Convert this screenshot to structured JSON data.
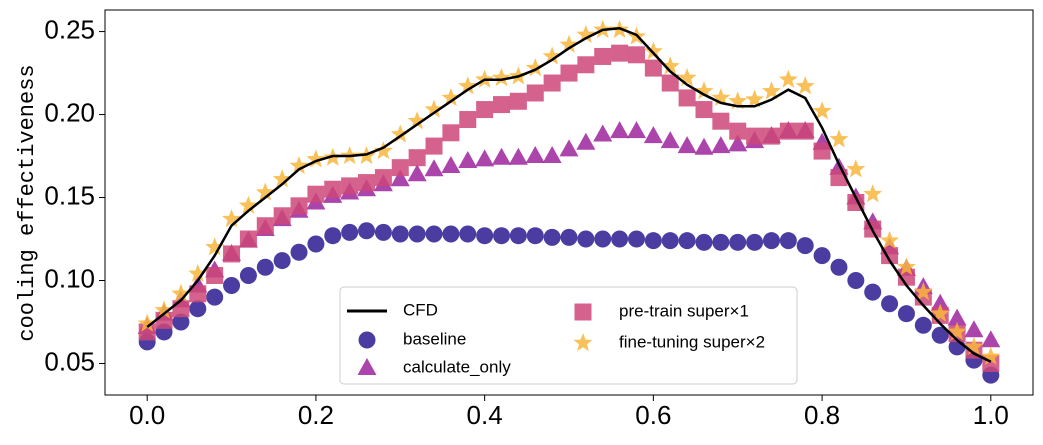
{
  "chart_data": {
    "type": "scatter",
    "ylabel": "cooling effectiveness",
    "x": [
      0,
      0.02,
      0.04,
      0.06,
      0.08,
      0.1,
      0.12,
      0.14,
      0.16,
      0.18,
      0.2,
      0.22,
      0.24,
      0.26,
      0.28,
      0.3,
      0.32,
      0.34,
      0.36,
      0.38,
      0.4,
      0.42,
      0.44,
      0.46,
      0.48,
      0.5,
      0.52,
      0.54,
      0.56,
      0.58,
      0.6,
      0.62,
      0.64,
      0.66,
      0.68,
      0.7,
      0.72,
      0.74,
      0.76,
      0.78,
      0.8,
      0.82,
      0.84,
      0.86,
      0.88,
      0.9,
      0.92,
      0.94,
      0.96,
      0.98,
      1.0
    ],
    "series": [
      {
        "name": "CFD",
        "color": "#000000",
        "marker": "line",
        "values": [
          0.072,
          0.08,
          0.088,
          0.1,
          0.115,
          0.133,
          0.142,
          0.15,
          0.158,
          0.167,
          0.172,
          0.175,
          0.175,
          0.176,
          0.18,
          0.187,
          0.194,
          0.201,
          0.208,
          0.215,
          0.221,
          0.221,
          0.223,
          0.227,
          0.233,
          0.24,
          0.246,
          0.251,
          0.252,
          0.248,
          0.237,
          0.226,
          0.218,
          0.212,
          0.207,
          0.205,
          0.205,
          0.209,
          0.215,
          0.21,
          0.192,
          0.17,
          0.15,
          0.13,
          0.112,
          0.097,
          0.085,
          0.074,
          0.064,
          0.056,
          0.051
        ]
      },
      {
        "name": "baseline",
        "color": "#2a1a8f",
        "marker": "circle",
        "values": [
          0.063,
          0.069,
          0.075,
          0.083,
          0.09,
          0.097,
          0.103,
          0.108,
          0.112,
          0.117,
          0.122,
          0.127,
          0.129,
          0.13,
          0.129,
          0.128,
          0.128,
          0.128,
          0.128,
          0.128,
          0.127,
          0.127,
          0.127,
          0.127,
          0.126,
          0.126,
          0.125,
          0.125,
          0.125,
          0.125,
          0.124,
          0.124,
          0.124,
          0.123,
          0.123,
          0.123,
          0.123,
          0.124,
          0.124,
          0.121,
          0.115,
          0.108,
          0.1,
          0.093,
          0.086,
          0.08,
          0.073,
          0.067,
          0.06,
          0.052,
          0.043
        ]
      },
      {
        "name": "calculate_only",
        "color": "#9c259e",
        "marker": "triangle",
        "values": [
          0.072,
          0.08,
          0.088,
          0.097,
          0.106,
          0.116,
          0.124,
          0.131,
          0.137,
          0.142,
          0.147,
          0.151,
          0.153,
          0.155,
          0.158,
          0.161,
          0.164,
          0.167,
          0.169,
          0.172,
          0.173,
          0.174,
          0.174,
          0.175,
          0.175,
          0.179,
          0.183,
          0.188,
          0.19,
          0.19,
          0.187,
          0.184,
          0.181,
          0.18,
          0.181,
          0.182,
          0.184,
          0.187,
          0.19,
          0.19,
          0.183,
          0.168,
          0.15,
          0.135,
          0.12,
          0.107,
          0.096,
          0.086,
          0.077,
          0.07,
          0.064
        ]
      },
      {
        "name": "pre-train super×1",
        "color": "#cc4778",
        "marker": "square",
        "values": [
          0.069,
          0.076,
          0.083,
          0.092,
          0.103,
          0.116,
          0.125,
          0.133,
          0.139,
          0.145,
          0.152,
          0.155,
          0.157,
          0.159,
          0.162,
          0.168,
          0.174,
          0.181,
          0.189,
          0.197,
          0.203,
          0.206,
          0.208,
          0.213,
          0.219,
          0.225,
          0.23,
          0.235,
          0.237,
          0.236,
          0.228,
          0.219,
          0.21,
          0.203,
          0.196,
          0.19,
          0.187,
          0.187,
          0.19,
          0.19,
          0.178,
          0.162,
          0.147,
          0.131,
          0.115,
          0.102,
          0.09,
          0.079,
          0.068,
          0.058,
          0.05
        ]
      },
      {
        "name": "fine-tuning super×2",
        "color": "#f8b63c",
        "marker": "star",
        "values": [
          0.074,
          0.082,
          0.092,
          0.104,
          0.12,
          0.137,
          0.145,
          0.153,
          0.161,
          0.169,
          0.173,
          0.174,
          0.175,
          0.175,
          0.178,
          0.188,
          0.196,
          0.203,
          0.21,
          0.217,
          0.221,
          0.222,
          0.223,
          0.228,
          0.235,
          0.242,
          0.248,
          0.251,
          0.251,
          0.247,
          0.238,
          0.229,
          0.222,
          0.214,
          0.21,
          0.208,
          0.209,
          0.214,
          0.221,
          0.217,
          0.202,
          0.185,
          0.167,
          0.152,
          0.124,
          0.108,
          0.093,
          0.08,
          0.069,
          0.06,
          0.054
        ]
      }
    ],
    "xlim": [
      -0.05,
      1.05
    ],
    "ylim": [
      0.031,
      0.263
    ],
    "xticks": [
      {
        "value": 0,
        "label": "0.0"
      },
      {
        "value": 0.2,
        "label": "0.2"
      },
      {
        "value": 0.4,
        "label": "0.4"
      },
      {
        "value": 0.6,
        "label": "0.6"
      },
      {
        "value": 0.8,
        "label": "0.8"
      },
      {
        "value": 1,
        "label": "1.0"
      }
    ],
    "yticks": [
      0.05,
      {
        "value": 0.1,
        "label": "0.10"
      },
      0.15,
      {
        "value": 0.2,
        "label": "0.20"
      },
      0.25
    ],
    "grid": false,
    "legend": "lower center"
  }
}
